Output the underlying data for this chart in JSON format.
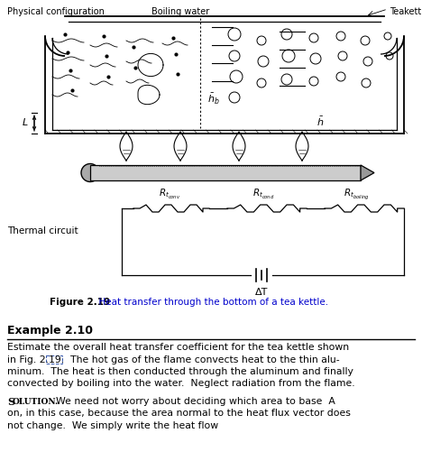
{
  "bg_color": "#ffffff",
  "fig_width": 4.68,
  "fig_height": 5.11,
  "dpi": 100,
  "figure_caption_bold": "Figure 2.19",
  "caption_text": "  Heat transfer through the bottom of a tea kettle.",
  "example_header": "Example 2.10",
  "label_physical": "Physical configuration",
  "label_boiling_water": "Boiling water",
  "label_teakettle": "Teakettle",
  "label_thermal": "Thermal circuit",
  "label_deltaT": "ΔT",
  "label_L": "L",
  "caption_color": "#0000cc",
  "example_lines": [
    "Estimate the overall heat transfer coefficient for the tea kettle shown",
    "in Fig. 2.19.  The hot gas of the flame convects heat to the thin alu-",
    "minum.  The heat is then conducted through the aluminum and finally",
    "convected by boiling into the water.  Neglect radiation from the flame."
  ],
  "solution_line1": "We need not worry about deciding which area to base  A",
  "solution_line2": "on, in this case, because the area normal to the heat flux vector does",
  "solution_line3": "not change.  We simply write the heat flow"
}
